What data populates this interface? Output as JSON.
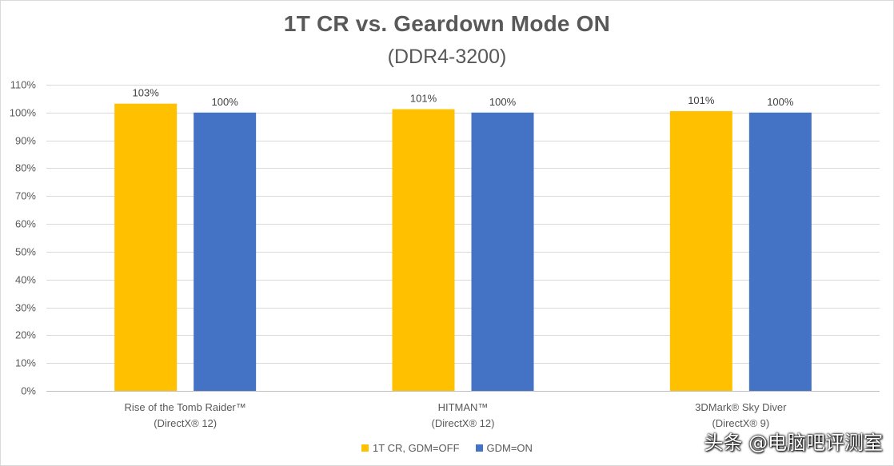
{
  "chart_data": {
    "type": "bar",
    "title": "1T CR vs. Geardown Mode ON",
    "subtitle": "(DDR4-3200)",
    "categories": [
      [
        "Rise of the Tomb Raider™",
        "(DirectX® 12)"
      ],
      [
        "HITMAN™",
        "(DirectX® 12)"
      ],
      [
        "3DMark® Sky Diver",
        "(DirectX® 9)"
      ]
    ],
    "series": [
      {
        "name": "1T CR, GDM=OFF",
        "color": "#FFC000",
        "values": [
          103.2,
          101.2,
          100.5
        ],
        "labels": [
          "103%",
          "101%",
          "101%"
        ]
      },
      {
        "name": "GDM=ON",
        "color": "#4472C4",
        "values": [
          100,
          100,
          100
        ],
        "labels": [
          "100%",
          "100%",
          "100%"
        ]
      }
    ],
    "ylim": [
      0,
      110
    ],
    "yticks": [
      0,
      10,
      20,
      30,
      40,
      50,
      60,
      70,
      80,
      90,
      100,
      110
    ],
    "ytick_labels": [
      "0%",
      "10%",
      "20%",
      "30%",
      "40%",
      "50%",
      "60%",
      "70%",
      "80%",
      "90%",
      "100%",
      "110%"
    ],
    "grid": true,
    "legend_position": "bottom"
  },
  "watermark": "头条 @电脑吧评测室"
}
